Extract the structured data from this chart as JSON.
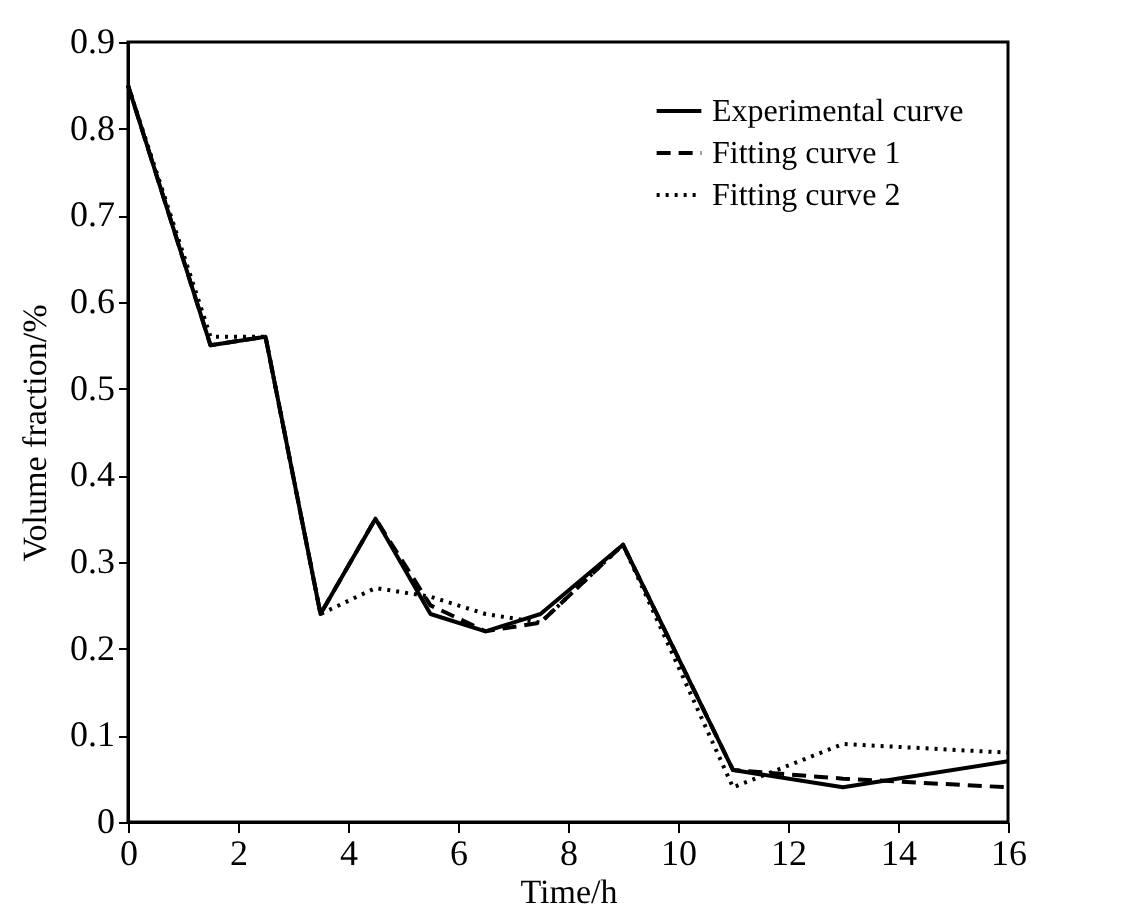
{
  "chart_data": {
    "type": "line",
    "xlabel": "Time/h",
    "ylabel": "Volume fraction/%",
    "xlim": [
      0,
      16
    ],
    "xticks": [
      0,
      2,
      4,
      6,
      8,
      10,
      12,
      14,
      16
    ],
    "ylim": [
      0,
      0.9
    ],
    "yticks": [
      {
        "value": 0,
        "label": "0"
      },
      0.1,
      0.2,
      0.3,
      0.4,
      0.5,
      0.6,
      0.7,
      0.8,
      0.9
    ],
    "legend": "top right",
    "grid": false,
    "marker": "none",
    "series": [
      {
        "name": "Experimental curve",
        "color": "#000000",
        "line_style": "solid",
        "x": [
          0,
          1.5,
          2.5,
          3.5,
          4.5,
          5.5,
          6.5,
          7.5,
          9,
          11,
          13,
          16
        ],
        "values": [
          0.85,
          0.55,
          0.56,
          0.24,
          0.35,
          0.24,
          0.22,
          0.24,
          0.32,
          0.06,
          0.04,
          0.07
        ]
      },
      {
        "name": "Fitting curve 1",
        "color": "#000000",
        "line_style": "dashed",
        "x": [
          0,
          1.5,
          2.5,
          3.5,
          4.5,
          5.5,
          6.5,
          7.5,
          9,
          11,
          13,
          16
        ],
        "values": [
          0.85,
          0.55,
          0.56,
          0.24,
          0.35,
          0.25,
          0.22,
          0.23,
          0.32,
          0.06,
          0.05,
          0.04
        ]
      },
      {
        "name": "Fitting curve 2",
        "color": "#000000",
        "line_style": "dotted",
        "x": [
          0,
          1.5,
          2.5,
          3.5,
          4.5,
          5.5,
          6.5,
          7.5,
          9,
          11,
          13,
          16
        ],
        "values": [
          0.85,
          0.56,
          0.56,
          0.24,
          0.27,
          0.26,
          0.24,
          0.23,
          0.32,
          0.04,
          0.09,
          0.08
        ]
      }
    ]
  }
}
